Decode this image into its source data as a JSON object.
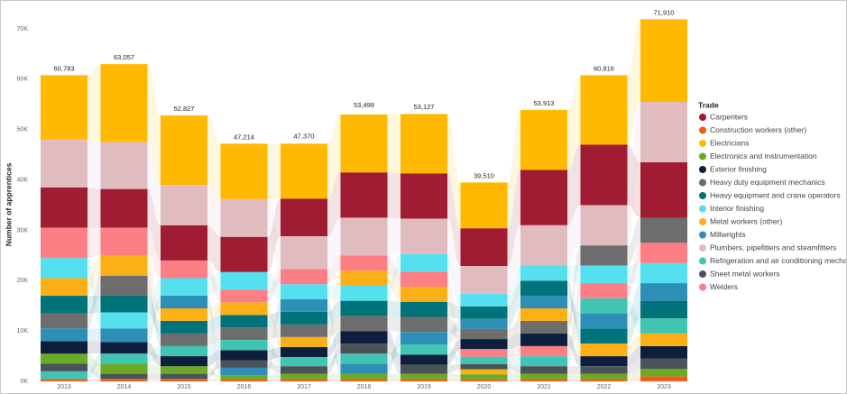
{
  "chart_data": {
    "type": "ribbon",
    "y_label": "Number of apprentices",
    "legend_title": "Trade",
    "categories": [
      "2013",
      "2014",
      "2015",
      "2016",
      "2017",
      "2018",
      "2019",
      "2020",
      "2021",
      "2022",
      "2023"
    ],
    "ylim": [
      0,
      70000
    ],
    "yticks": [
      {
        "value": 0,
        "label": "0K"
      },
      {
        "value": 10000,
        "label": "10K"
      },
      {
        "value": 20000,
        "label": "20K"
      },
      {
        "value": 30000,
        "label": "30K"
      },
      {
        "value": 40000,
        "label": "40K"
      },
      {
        "value": 50000,
        "label": "50K"
      },
      {
        "value": 60000,
        "label": "60K"
      },
      {
        "value": 70000,
        "label": "70K"
      }
    ],
    "totals": [
      60783,
      63057,
      52827,
      47214,
      47370,
      53499,
      53127,
      39510,
      53913,
      60816,
      71910
    ],
    "total_labels": [
      "60,783",
      "63,057",
      "52,827",
      "47,214",
      "47,370",
      "53,499",
      "53,127",
      "39,510",
      "53,913",
      "60,816",
      "71,910"
    ],
    "series": [
      {
        "name": "Carpenters",
        "color": "#a01c32",
        "values": [
          8000,
          7700,
          7000,
          7000,
          7500,
          9000,
          9000,
          7500,
          11000,
          12000,
          11000
        ]
      },
      {
        "name": "Construction workers (other)",
        "color": "#e8601c",
        "values": [
          500,
          500,
          500,
          500,
          500,
          500,
          500,
          400,
          500,
          500,
          1000
        ]
      },
      {
        "name": "Electricians",
        "color": "#ffb900",
        "values": [
          12800,
          15500,
          13800,
          11000,
          10900,
          11500,
          11800,
          9100,
          11900,
          13800,
          16400
        ]
      },
      {
        "name": "Electronics and instrumentation",
        "color": "#6aaa25",
        "values": [
          2000,
          2000,
          1500,
          700,
          1000,
          1000,
          1000,
          1000,
          1000,
          1000,
          1500
        ]
      },
      {
        "name": "Exterior finishing",
        "color": "#0e1f3d",
        "values": [
          2500,
          2300,
          2000,
          2000,
          2000,
          2500,
          2000,
          2000,
          2500,
          2000,
          2500
        ]
      },
      {
        "name": "Heavy duty equipment mechanics",
        "color": "#6d6d6d",
        "values": [
          3000,
          4000,
          2500,
          2500,
          2500,
          3000,
          3000,
          2000,
          2500,
          4000,
          5000
        ]
      },
      {
        "name": "Heavy equipment and crane operators",
        "color": "#00737a",
        "values": [
          3500,
          3300,
          2500,
          2500,
          2500,
          3000,
          3000,
          2500,
          3000,
          3000,
          3500
        ]
      },
      {
        "name": "Interior finishing",
        "color": "#55e0ef",
        "values": [
          4000,
          3200,
          3500,
          3500,
          3000,
          3000,
          3500,
          2500,
          3000,
          3500,
          4000
        ]
      },
      {
        "name": "Metal workers (other)",
        "color": "#fcb017",
        "values": [
          3500,
          4000,
          2500,
          2500,
          2000,
          3000,
          3000,
          1000,
          2500,
          2500,
          2500
        ]
      },
      {
        "name": "Millwrights",
        "color": "#2e8fb6",
        "values": [
          2500,
          2700,
          2500,
          1500,
          2500,
          2000,
          2500,
          2000,
          2500,
          3000,
          3500
        ]
      },
      {
        "name": "Plumbers, pipefitters and steamfitters",
        "color": "#e0bcc0",
        "values": [
          9500,
          9300,
          8000,
          7500,
          6500,
          7500,
          7000,
          5500,
          8000,
          8000,
          12000
        ]
      },
      {
        "name": "Refrigeration and air conditioning mechanics",
        "color": "#41c4b3",
        "values": [
          1500,
          2000,
          2000,
          2000,
          1800,
          2000,
          2000,
          1500,
          2000,
          3000,
          3000
        ]
      },
      {
        "name": "Sheet metal workers",
        "color": "#4a5458",
        "values": [
          1500,
          1000,
          1000,
          1500,
          1500,
          2000,
          1800,
          1000,
          1500,
          1500,
          2000
        ]
      },
      {
        "name": "Welders",
        "color": "#fb7f84",
        "values": [
          6000,
          5500,
          3500,
          2500,
          3000,
          3000,
          3000,
          1500,
          2000,
          3000,
          4000
        ]
      }
    ]
  }
}
